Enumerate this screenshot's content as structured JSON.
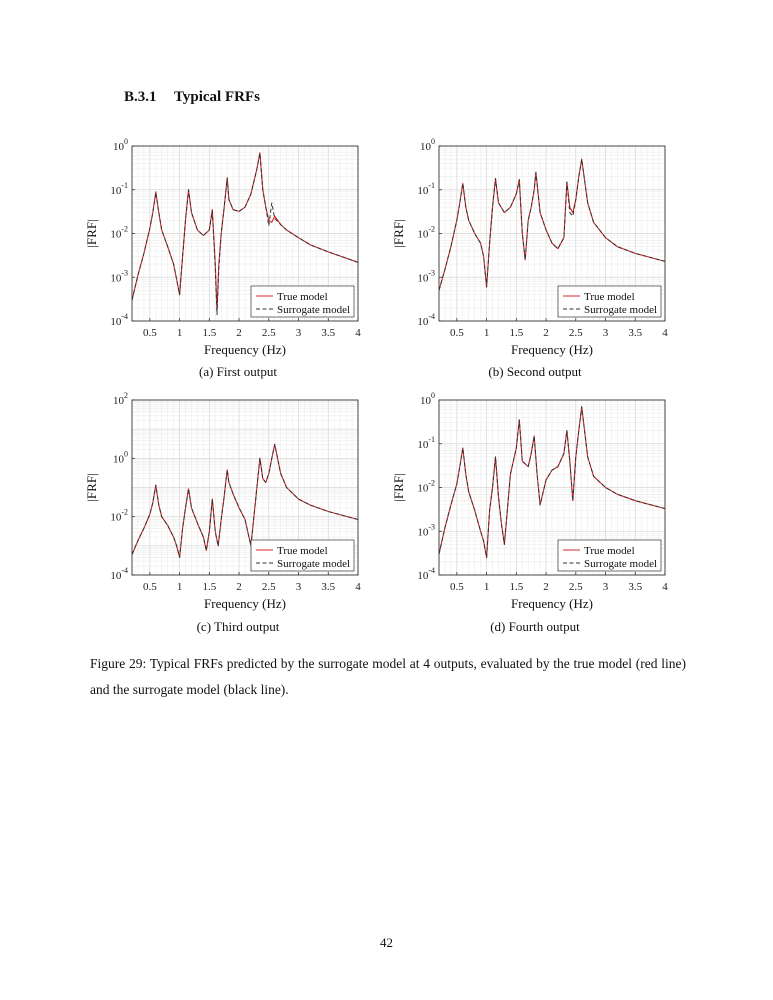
{
  "section": {
    "number": "B.3.1",
    "title": "Typical FRFs"
  },
  "chart_data": [
    {
      "type": "line",
      "caption": "(a) First output",
      "xlabel": "Frequency (Hz)",
      "ylabel": "|FRF|",
      "xlim": [
        0.2,
        4
      ],
      "ylim": [
        0.0001,
        1
      ],
      "yscale": "log",
      "xticks": [
        "0.5",
        "1",
        "1.5",
        "2",
        "2.5",
        "3",
        "3.5",
        "4"
      ],
      "yticks": [
        {
          "base": "10",
          "exp": "0"
        },
        {
          "base": "10",
          "exp": "-1"
        },
        {
          "base": "10",
          "exp": "-2"
        },
        {
          "base": "10",
          "exp": "-3"
        },
        {
          "base": "10",
          "exp": "-4"
        }
      ],
      "ytick_values": [
        1,
        0.1,
        0.01,
        0.001,
        0.0001
      ],
      "grid": true,
      "legend_position": "bottom-right",
      "series": [
        {
          "name": "True model",
          "color": "#d62728",
          "style": "solid",
          "x": [
            0.2,
            0.3,
            0.4,
            0.5,
            0.55,
            0.6,
            0.65,
            0.7,
            0.8,
            0.9,
            0.95,
            1.0,
            1.05,
            1.1,
            1.15,
            1.2,
            1.3,
            1.4,
            1.5,
            1.55,
            1.6,
            1.63,
            1.66,
            1.7,
            1.75,
            1.8,
            1.83,
            1.9,
            2.0,
            2.1,
            2.2,
            2.3,
            2.35,
            2.4,
            2.45,
            2.5,
            2.55,
            2.6,
            2.7,
            2.8,
            3.0,
            3.2,
            3.5,
            4.0
          ],
          "y": [
            0.0003,
            0.0011,
            0.0035,
            0.013,
            0.03,
            0.09,
            0.03,
            0.012,
            0.005,
            0.002,
            0.0009,
            0.0004,
            0.003,
            0.02,
            0.1,
            0.03,
            0.012,
            0.009,
            0.012,
            0.035,
            0.002,
            0.00017,
            0.002,
            0.01,
            0.04,
            0.19,
            0.06,
            0.035,
            0.032,
            0.04,
            0.08,
            0.3,
            0.7,
            0.1,
            0.04,
            0.02,
            0.018,
            0.025,
            0.016,
            0.012,
            0.008,
            0.0055,
            0.0038,
            0.0022
          ]
        },
        {
          "name": "Surrogate model",
          "color": "#333333",
          "style": "dashed",
          "x": [
            0.2,
            0.3,
            0.4,
            0.5,
            0.55,
            0.6,
            0.65,
            0.7,
            0.8,
            0.9,
            0.95,
            1.0,
            1.05,
            1.1,
            1.15,
            1.2,
            1.3,
            1.4,
            1.5,
            1.55,
            1.6,
            1.63,
            1.66,
            1.7,
            1.75,
            1.8,
            1.83,
            1.9,
            2.0,
            2.1,
            2.2,
            2.3,
            2.35,
            2.4,
            2.45,
            2.5,
            2.55,
            2.6,
            2.7,
            2.8,
            3.0,
            3.2,
            3.5,
            4.0
          ],
          "y": [
            0.0003,
            0.0011,
            0.0035,
            0.013,
            0.03,
            0.085,
            0.03,
            0.012,
            0.005,
            0.002,
            0.0009,
            0.0004,
            0.003,
            0.02,
            0.1,
            0.03,
            0.012,
            0.009,
            0.012,
            0.033,
            0.0015,
            0.00014,
            0.0015,
            0.01,
            0.04,
            0.18,
            0.06,
            0.035,
            0.032,
            0.04,
            0.08,
            0.3,
            0.68,
            0.1,
            0.04,
            0.015,
            0.05,
            0.022,
            0.016,
            0.012,
            0.008,
            0.0055,
            0.0038,
            0.0022
          ]
        }
      ]
    },
    {
      "type": "line",
      "caption": "(b) Second output",
      "xlabel": "Frequency (Hz)",
      "ylabel": "|FRF|",
      "xlim": [
        0.2,
        4
      ],
      "ylim": [
        0.0001,
        1
      ],
      "yscale": "log",
      "xticks": [
        "0.5",
        "1",
        "1.5",
        "2",
        "2.5",
        "3",
        "3.5",
        "4"
      ],
      "yticks": [
        {
          "base": "10",
          "exp": "0"
        },
        {
          "base": "10",
          "exp": "-1"
        },
        {
          "base": "10",
          "exp": "-2"
        },
        {
          "base": "10",
          "exp": "-3"
        },
        {
          "base": "10",
          "exp": "-4"
        }
      ],
      "ytick_values": [
        1,
        0.1,
        0.01,
        0.001,
        0.0001
      ],
      "grid": true,
      "legend_position": "bottom-right",
      "series": [
        {
          "name": "True model",
          "color": "#d62728",
          "style": "solid",
          "x": [
            0.2,
            0.3,
            0.4,
            0.5,
            0.55,
            0.6,
            0.65,
            0.7,
            0.8,
            0.9,
            0.95,
            1.0,
            1.05,
            1.1,
            1.15,
            1.2,
            1.3,
            1.4,
            1.5,
            1.55,
            1.6,
            1.65,
            1.7,
            1.75,
            1.8,
            1.83,
            1.9,
            2.0,
            2.1,
            2.2,
            2.3,
            2.35,
            2.4,
            2.45,
            2.5,
            2.55,
            2.6,
            2.7,
            2.8,
            3.0,
            3.2,
            3.5,
            4.0
          ],
          "y": [
            0.0005,
            0.0015,
            0.005,
            0.02,
            0.05,
            0.14,
            0.04,
            0.02,
            0.01,
            0.006,
            0.003,
            0.0006,
            0.006,
            0.04,
            0.18,
            0.05,
            0.03,
            0.04,
            0.08,
            0.17,
            0.01,
            0.0025,
            0.02,
            0.04,
            0.1,
            0.25,
            0.03,
            0.012,
            0.006,
            0.0045,
            0.008,
            0.15,
            0.04,
            0.03,
            0.06,
            0.2,
            0.5,
            0.05,
            0.018,
            0.008,
            0.005,
            0.0035,
            0.0023
          ]
        },
        {
          "name": "Surrogate model",
          "color": "#333333",
          "style": "dashed",
          "x": [
            0.2,
            0.3,
            0.4,
            0.5,
            0.55,
            0.6,
            0.65,
            0.7,
            0.8,
            0.9,
            0.95,
            1.0,
            1.05,
            1.1,
            1.15,
            1.2,
            1.3,
            1.4,
            1.5,
            1.55,
            1.6,
            1.65,
            1.7,
            1.75,
            1.8,
            1.83,
            1.9,
            2.0,
            2.1,
            2.2,
            2.3,
            2.35,
            2.4,
            2.45,
            2.5,
            2.55,
            2.6,
            2.7,
            2.8,
            3.0,
            3.2,
            3.5,
            4.0
          ],
          "y": [
            0.0005,
            0.0015,
            0.005,
            0.02,
            0.05,
            0.14,
            0.04,
            0.02,
            0.01,
            0.006,
            0.003,
            0.0006,
            0.006,
            0.04,
            0.18,
            0.05,
            0.03,
            0.04,
            0.08,
            0.17,
            0.01,
            0.0025,
            0.02,
            0.04,
            0.1,
            0.25,
            0.03,
            0.012,
            0.006,
            0.0045,
            0.008,
            0.15,
            0.03,
            0.025,
            0.06,
            0.2,
            0.5,
            0.05,
            0.018,
            0.008,
            0.005,
            0.0035,
            0.0023
          ]
        }
      ]
    },
    {
      "type": "line",
      "caption": "(c) Third output",
      "xlabel": "Frequency (Hz)",
      "ylabel": "|FRF|",
      "xlim": [
        0.2,
        4
      ],
      "ylim": [
        0.0001,
        100
      ],
      "yscale": "log",
      "xticks": [
        "0.5",
        "1",
        "1.5",
        "2",
        "2.5",
        "3",
        "3.5",
        "4"
      ],
      "yticks": [
        {
          "base": "10",
          "exp": "2"
        },
        {
          "base": "10",
          "exp": "0"
        },
        {
          "base": "10",
          "exp": "-2"
        },
        {
          "base": "10",
          "exp": "-4"
        }
      ],
      "ytick_values": [
        100,
        1,
        0.01,
        0.0001
      ],
      "grid": true,
      "legend_position": "bottom-right",
      "series": [
        {
          "name": "True model",
          "color": "#d62728",
          "style": "solid",
          "x": [
            0.2,
            0.3,
            0.4,
            0.5,
            0.55,
            0.6,
            0.65,
            0.7,
            0.8,
            0.9,
            0.95,
            1.0,
            1.05,
            1.1,
            1.15,
            1.2,
            1.3,
            1.4,
            1.45,
            1.5,
            1.55,
            1.6,
            1.65,
            1.7,
            1.75,
            1.8,
            1.83,
            1.9,
            2.0,
            2.1,
            2.2,
            2.25,
            2.3,
            2.35,
            2.4,
            2.45,
            2.5,
            2.55,
            2.6,
            2.7,
            2.8,
            3.0,
            3.2,
            3.5,
            4.0
          ],
          "y": [
            0.0005,
            0.0015,
            0.004,
            0.012,
            0.03,
            0.12,
            0.025,
            0.01,
            0.005,
            0.002,
            0.001,
            0.0004,
            0.004,
            0.02,
            0.09,
            0.02,
            0.006,
            0.002,
            0.0007,
            0.003,
            0.04,
            0.003,
            0.001,
            0.008,
            0.05,
            0.4,
            0.15,
            0.06,
            0.02,
            0.008,
            0.001,
            0.01,
            0.1,
            1.0,
            0.2,
            0.15,
            0.3,
            1.0,
            3.0,
            0.3,
            0.1,
            0.04,
            0.025,
            0.015,
            0.008
          ]
        },
        {
          "name": "Surrogate model",
          "color": "#333333",
          "style": "dashed",
          "x": [
            0.2,
            0.3,
            0.4,
            0.5,
            0.55,
            0.6,
            0.65,
            0.7,
            0.8,
            0.9,
            0.95,
            1.0,
            1.05,
            1.1,
            1.15,
            1.2,
            1.3,
            1.4,
            1.45,
            1.5,
            1.55,
            1.6,
            1.65,
            1.7,
            1.75,
            1.8,
            1.83,
            1.9,
            2.0,
            2.1,
            2.2,
            2.25,
            2.3,
            2.35,
            2.4,
            2.45,
            2.5,
            2.55,
            2.6,
            2.7,
            2.8,
            3.0,
            3.2,
            3.5,
            4.0
          ],
          "y": [
            0.0005,
            0.0015,
            0.004,
            0.012,
            0.03,
            0.12,
            0.025,
            0.01,
            0.005,
            0.002,
            0.001,
            0.0004,
            0.004,
            0.02,
            0.09,
            0.02,
            0.006,
            0.002,
            0.0007,
            0.003,
            0.04,
            0.003,
            0.001,
            0.008,
            0.05,
            0.4,
            0.15,
            0.06,
            0.02,
            0.008,
            0.001,
            0.01,
            0.1,
            1.0,
            0.2,
            0.15,
            0.3,
            1.0,
            3.0,
            0.3,
            0.1,
            0.04,
            0.025,
            0.015,
            0.008
          ]
        }
      ]
    },
    {
      "type": "line",
      "caption": "(d) Fourth output",
      "xlabel": "Frequency (Hz)",
      "ylabel": "|FRF|",
      "xlim": [
        0.2,
        4
      ],
      "ylim": [
        0.0001,
        1
      ],
      "yscale": "log",
      "xticks": [
        "0.5",
        "1",
        "1.5",
        "2",
        "2.5",
        "3",
        "3.5",
        "4"
      ],
      "yticks": [
        {
          "base": "10",
          "exp": "0"
        },
        {
          "base": "10",
          "exp": "-1"
        },
        {
          "base": "10",
          "exp": "-2"
        },
        {
          "base": "10",
          "exp": "-3"
        },
        {
          "base": "10",
          "exp": "-4"
        }
      ],
      "ytick_values": [
        1,
        0.1,
        0.01,
        0.001,
        0.0001
      ],
      "grid": true,
      "legend_position": "bottom-right",
      "series": [
        {
          "name": "True model",
          "color": "#d62728",
          "style": "solid",
          "x": [
            0.2,
            0.3,
            0.4,
            0.5,
            0.55,
            0.6,
            0.65,
            0.7,
            0.8,
            0.9,
            0.95,
            1.0,
            1.05,
            1.1,
            1.15,
            1.2,
            1.25,
            1.3,
            1.4,
            1.5,
            1.55,
            1.6,
            1.7,
            1.75,
            1.8,
            1.85,
            1.9,
            2.0,
            2.1,
            2.2,
            2.3,
            2.35,
            2.4,
            2.45,
            2.5,
            2.55,
            2.6,
            2.7,
            2.8,
            3.0,
            3.2,
            3.5,
            4.0
          ],
          "y": [
            0.0003,
            0.0012,
            0.004,
            0.012,
            0.03,
            0.08,
            0.02,
            0.008,
            0.003,
            0.001,
            0.0006,
            0.00025,
            0.003,
            0.01,
            0.05,
            0.006,
            0.0015,
            0.0005,
            0.02,
            0.08,
            0.35,
            0.04,
            0.03,
            0.06,
            0.15,
            0.02,
            0.004,
            0.015,
            0.025,
            0.03,
            0.06,
            0.2,
            0.04,
            0.005,
            0.05,
            0.2,
            0.7,
            0.05,
            0.018,
            0.01,
            0.007,
            0.005,
            0.0033
          ]
        },
        {
          "name": "Surrogate model",
          "color": "#333333",
          "style": "dashed",
          "x": [
            0.2,
            0.3,
            0.4,
            0.5,
            0.55,
            0.6,
            0.65,
            0.7,
            0.8,
            0.9,
            0.95,
            1.0,
            1.05,
            1.1,
            1.15,
            1.2,
            1.25,
            1.3,
            1.4,
            1.5,
            1.55,
            1.6,
            1.7,
            1.75,
            1.8,
            1.85,
            1.9,
            2.0,
            2.1,
            2.2,
            2.3,
            2.35,
            2.4,
            2.45,
            2.5,
            2.55,
            2.6,
            2.7,
            2.8,
            3.0,
            3.2,
            3.5,
            4.0
          ],
          "y": [
            0.0003,
            0.0012,
            0.004,
            0.012,
            0.03,
            0.08,
            0.02,
            0.008,
            0.003,
            0.001,
            0.0006,
            0.00025,
            0.003,
            0.01,
            0.05,
            0.006,
            0.0015,
            0.0005,
            0.02,
            0.08,
            0.35,
            0.04,
            0.03,
            0.06,
            0.15,
            0.02,
            0.004,
            0.015,
            0.025,
            0.03,
            0.06,
            0.2,
            0.04,
            0.005,
            0.05,
            0.2,
            0.7,
            0.05,
            0.018,
            0.01,
            0.007,
            0.005,
            0.0033
          ]
        }
      ]
    }
  ],
  "figure_caption": "Figure 29: Typical FRFs predicted by the surrogate model at 4 outputs, evaluated by the true model (red line) and the surrogate model (black line).",
  "page_number": "42"
}
